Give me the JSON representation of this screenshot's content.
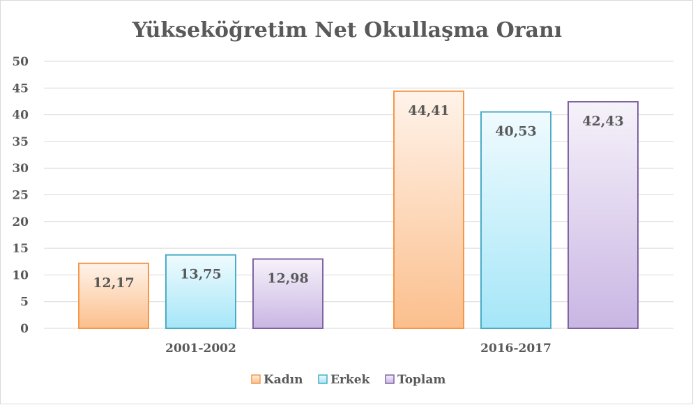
{
  "chart_data": {
    "type": "bar",
    "title": "Yükseköğretim Net Okullaşma Oranı",
    "categories": [
      "2001-2002",
      "2016-2017"
    ],
    "series": [
      {
        "name": "Kadın",
        "values": [
          12.17,
          44.41
        ],
        "labels": [
          "12,17",
          "44,41"
        ],
        "color": "#f79646",
        "fill_top": "#fff3ea",
        "fill_bottom": "#fbbf8d"
      },
      {
        "name": "Erkek",
        "values": [
          13.75,
          40.53
        ],
        "labels": [
          "13,75",
          "40,53"
        ],
        "color": "#4bacc6",
        "fill_top": "#f0fbfe",
        "fill_bottom": "#a5e6f8"
      },
      {
        "name": "Toplam",
        "values": [
          12.98,
          42.43
        ],
        "labels": [
          "12,98",
          "42,43"
        ],
        "color": "#8064a2",
        "fill_top": "#f6f2fa",
        "fill_bottom": "#c9b6e3"
      }
    ],
    "ylim": [
      0,
      50
    ],
    "yticks": [
      "0",
      "5",
      "10",
      "15",
      "20",
      "25",
      "30",
      "35",
      "40",
      "45",
      "50"
    ],
    "ytick_values": [
      0,
      5,
      10,
      15,
      20,
      25,
      30,
      35,
      40,
      45,
      50
    ],
    "grid": true,
    "gridline_color": "#d9d9d9",
    "legend_position": "bottom-center",
    "xlabel": "",
    "ylabel": ""
  }
}
